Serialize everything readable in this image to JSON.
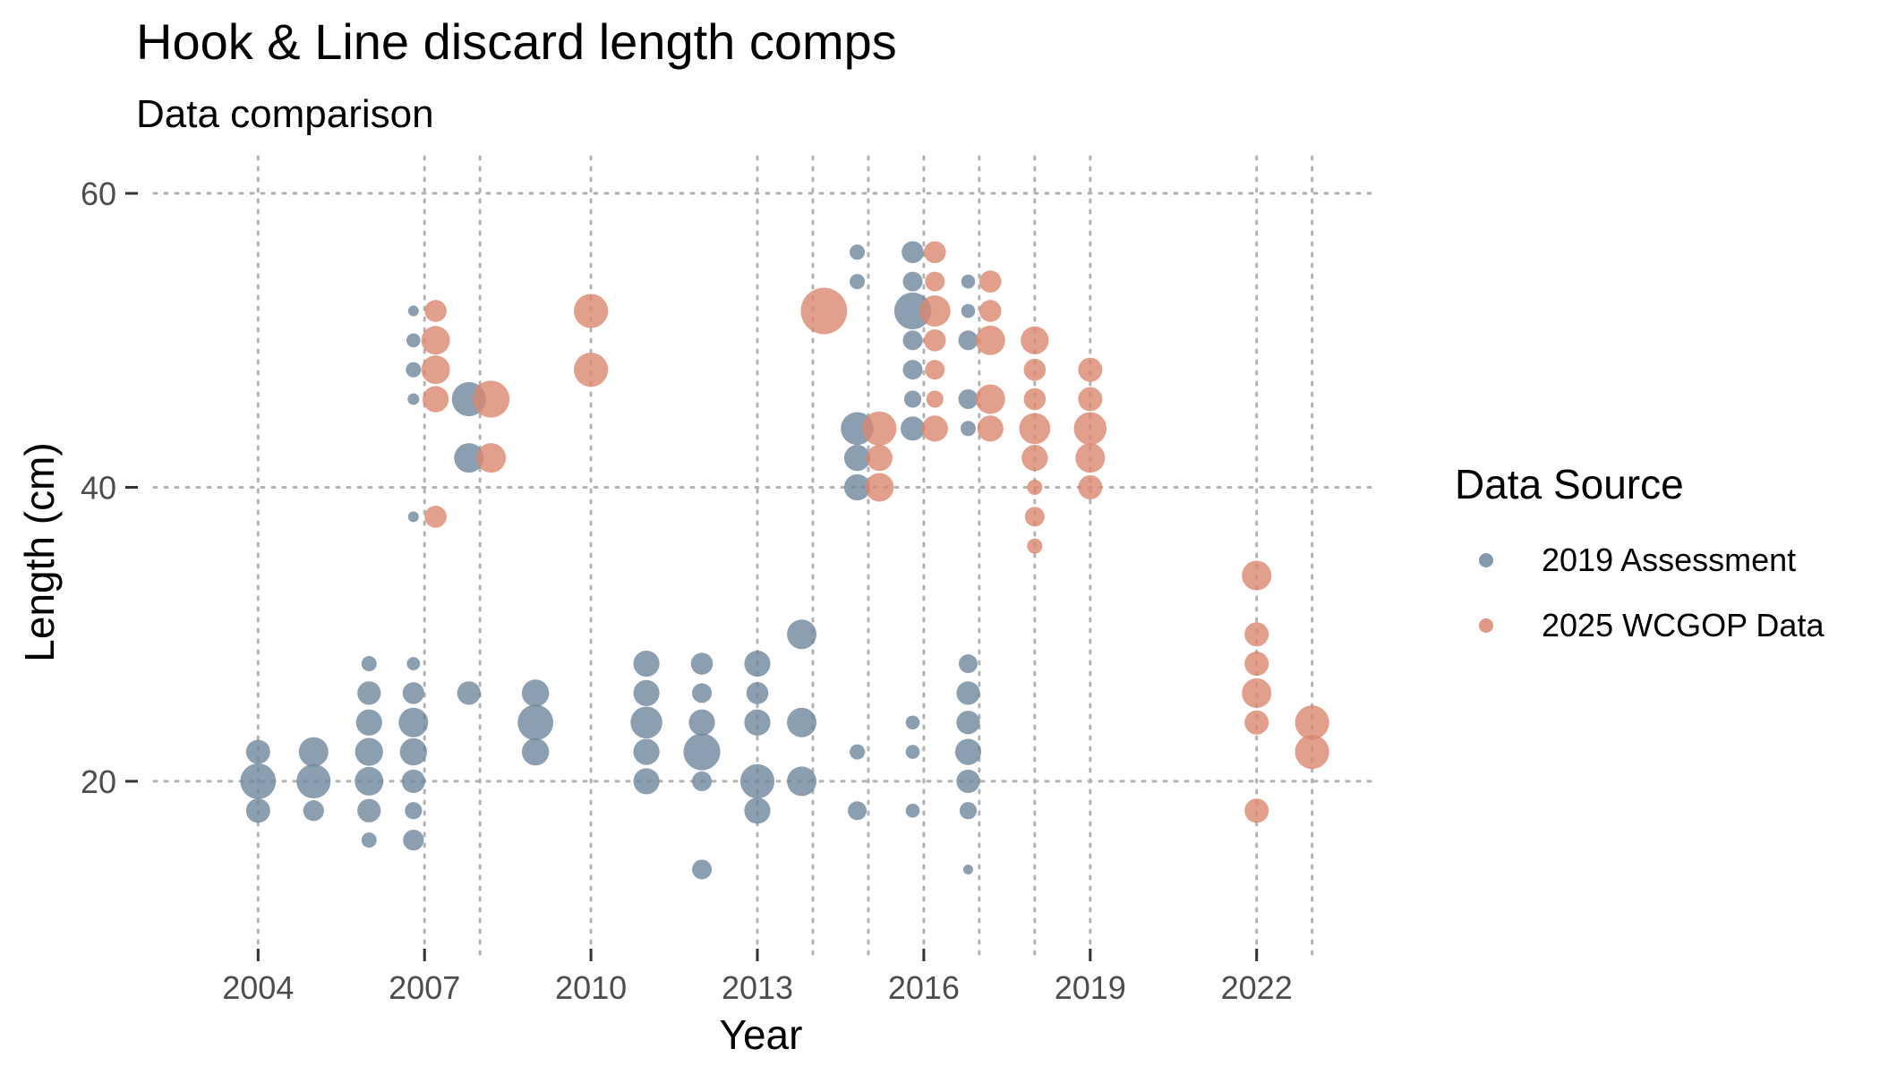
{
  "chart_data": {
    "type": "scatter",
    "title": "Hook & Line discard length comps",
    "subtitle": "Data comparison",
    "xlabel": "Year",
    "ylabel": "Length (cm)",
    "xlim": [
      2001.8,
      2024.2
    ],
    "ylim": [
      8,
      62.5
    ],
    "x_ticks": [
      2004,
      2007,
      2010,
      2013,
      2016,
      2019,
      2022
    ],
    "y_ticks": [
      20,
      40,
      60
    ],
    "x_grid": [
      2004,
      2007,
      2008,
      2010,
      2013,
      2014,
      2015,
      2016,
      2017,
      2018,
      2019,
      2022,
      2023
    ],
    "grid": true,
    "legend": {
      "title": "Data Source",
      "placement": "right"
    },
    "series": [
      {
        "name": "2019 Assessment",
        "color": "#6e879c",
        "points": [
          {
            "x": 2004,
            "y": 22,
            "size": 0.03
          },
          {
            "x": 2004,
            "y": 20,
            "size": 0.065
          },
          {
            "x": 2004,
            "y": 18,
            "size": 0.03
          },
          {
            "x": 2005,
            "y": 22,
            "size": 0.045
          },
          {
            "x": 2005,
            "y": 20,
            "size": 0.06
          },
          {
            "x": 2005,
            "y": 18,
            "size": 0.022
          },
          {
            "x": 2006,
            "y": 28,
            "size": 0.012
          },
          {
            "x": 2006,
            "y": 26,
            "size": 0.028
          },
          {
            "x": 2006,
            "y": 24,
            "size": 0.035
          },
          {
            "x": 2006,
            "y": 22,
            "size": 0.04
          },
          {
            "x": 2006,
            "y": 20,
            "size": 0.042
          },
          {
            "x": 2006,
            "y": 18,
            "size": 0.028
          },
          {
            "x": 2006,
            "y": 16,
            "size": 0.012
          },
          {
            "x": 2006.8,
            "y": 52,
            "size": 0.006
          },
          {
            "x": 2006.8,
            "y": 50,
            "size": 0.01
          },
          {
            "x": 2006.8,
            "y": 48,
            "size": 0.012
          },
          {
            "x": 2006.8,
            "y": 46,
            "size": 0.007
          },
          {
            "x": 2006.8,
            "y": 38,
            "size": 0.006
          },
          {
            "x": 2006.8,
            "y": 28,
            "size": 0.009
          },
          {
            "x": 2006.8,
            "y": 26,
            "size": 0.024
          },
          {
            "x": 2006.8,
            "y": 24,
            "size": 0.045
          },
          {
            "x": 2006.8,
            "y": 22,
            "size": 0.038
          },
          {
            "x": 2006.8,
            "y": 20,
            "size": 0.028
          },
          {
            "x": 2006.8,
            "y": 18,
            "size": 0.015
          },
          {
            "x": 2006.8,
            "y": 16,
            "size": 0.022
          },
          {
            "x": 2007.8,
            "y": 46,
            "size": 0.06
          },
          {
            "x": 2007.8,
            "y": 42,
            "size": 0.045
          },
          {
            "x": 2007.8,
            "y": 26,
            "size": 0.028
          },
          {
            "x": 2009,
            "y": 26,
            "size": 0.038
          },
          {
            "x": 2009,
            "y": 24,
            "size": 0.065
          },
          {
            "x": 2009,
            "y": 22,
            "size": 0.038
          },
          {
            "x": 2011,
            "y": 28,
            "size": 0.035
          },
          {
            "x": 2011,
            "y": 26,
            "size": 0.035
          },
          {
            "x": 2011,
            "y": 24,
            "size": 0.052
          },
          {
            "x": 2011,
            "y": 22,
            "size": 0.035
          },
          {
            "x": 2011,
            "y": 20,
            "size": 0.035
          },
          {
            "x": 2012,
            "y": 28,
            "size": 0.025
          },
          {
            "x": 2012,
            "y": 26,
            "size": 0.02
          },
          {
            "x": 2012,
            "y": 24,
            "size": 0.035
          },
          {
            "x": 2012,
            "y": 22,
            "size": 0.07
          },
          {
            "x": 2012,
            "y": 20,
            "size": 0.02
          },
          {
            "x": 2012,
            "y": 14,
            "size": 0.02
          },
          {
            "x": 2013,
            "y": 28,
            "size": 0.035
          },
          {
            "x": 2013,
            "y": 26,
            "size": 0.025
          },
          {
            "x": 2013,
            "y": 24,
            "size": 0.035
          },
          {
            "x": 2013,
            "y": 20,
            "size": 0.06
          },
          {
            "x": 2013,
            "y": 18,
            "size": 0.035
          },
          {
            "x": 2013.8,
            "y": 30,
            "size": 0.045
          },
          {
            "x": 2013.8,
            "y": 24,
            "size": 0.045
          },
          {
            "x": 2013.8,
            "y": 20,
            "size": 0.045
          },
          {
            "x": 2014.8,
            "y": 56,
            "size": 0.012
          },
          {
            "x": 2014.8,
            "y": 54,
            "size": 0.012
          },
          {
            "x": 2014.8,
            "y": 44,
            "size": 0.055
          },
          {
            "x": 2014.8,
            "y": 42,
            "size": 0.035
          },
          {
            "x": 2014.8,
            "y": 40,
            "size": 0.035
          },
          {
            "x": 2014.8,
            "y": 22,
            "size": 0.012
          },
          {
            "x": 2014.8,
            "y": 18,
            "size": 0.018
          },
          {
            "x": 2015.8,
            "y": 56,
            "size": 0.025
          },
          {
            "x": 2015.8,
            "y": 54,
            "size": 0.02
          },
          {
            "x": 2015.8,
            "y": 52,
            "size": 0.07
          },
          {
            "x": 2015.8,
            "y": 50,
            "size": 0.02
          },
          {
            "x": 2015.8,
            "y": 48,
            "size": 0.02
          },
          {
            "x": 2015.8,
            "y": 46,
            "size": 0.015
          },
          {
            "x": 2015.8,
            "y": 44,
            "size": 0.03
          },
          {
            "x": 2015.8,
            "y": 24,
            "size": 0.01
          },
          {
            "x": 2015.8,
            "y": 22,
            "size": 0.01
          },
          {
            "x": 2015.8,
            "y": 18,
            "size": 0.01
          },
          {
            "x": 2016.8,
            "y": 54,
            "size": 0.01
          },
          {
            "x": 2016.8,
            "y": 52,
            "size": 0.01
          },
          {
            "x": 2016.8,
            "y": 50,
            "size": 0.02
          },
          {
            "x": 2016.8,
            "y": 46,
            "size": 0.02
          },
          {
            "x": 2016.8,
            "y": 44,
            "size": 0.012
          },
          {
            "x": 2016.8,
            "y": 28,
            "size": 0.018
          },
          {
            "x": 2016.8,
            "y": 26,
            "size": 0.028
          },
          {
            "x": 2016.8,
            "y": 24,
            "size": 0.028
          },
          {
            "x": 2016.8,
            "y": 22,
            "size": 0.035
          },
          {
            "x": 2016.8,
            "y": 20,
            "size": 0.028
          },
          {
            "x": 2016.8,
            "y": 18,
            "size": 0.015
          },
          {
            "x": 2016.8,
            "y": 14,
            "size": 0.005
          }
        ]
      },
      {
        "name": "2025 WCGOP Data",
        "color": "#d9876f",
        "points": [
          {
            "x": 2007.2,
            "y": 52,
            "size": 0.025
          },
          {
            "x": 2007.2,
            "y": 50,
            "size": 0.042
          },
          {
            "x": 2007.2,
            "y": 48,
            "size": 0.042
          },
          {
            "x": 2007.2,
            "y": 46,
            "size": 0.035
          },
          {
            "x": 2007.2,
            "y": 38,
            "size": 0.025
          },
          {
            "x": 2008.2,
            "y": 46,
            "size": 0.07
          },
          {
            "x": 2008.2,
            "y": 42,
            "size": 0.045
          },
          {
            "x": 2010,
            "y": 52,
            "size": 0.06
          },
          {
            "x": 2010,
            "y": 48,
            "size": 0.06
          },
          {
            "x": 2014.2,
            "y": 52,
            "size": 0.11
          },
          {
            "x": 2015.2,
            "y": 44,
            "size": 0.06
          },
          {
            "x": 2015.2,
            "y": 42,
            "size": 0.035
          },
          {
            "x": 2015.2,
            "y": 40,
            "size": 0.042
          },
          {
            "x": 2016.2,
            "y": 56,
            "size": 0.025
          },
          {
            "x": 2016.2,
            "y": 54,
            "size": 0.02
          },
          {
            "x": 2016.2,
            "y": 52,
            "size": 0.05
          },
          {
            "x": 2016.2,
            "y": 50,
            "size": 0.025
          },
          {
            "x": 2016.2,
            "y": 48,
            "size": 0.02
          },
          {
            "x": 2016.2,
            "y": 46,
            "size": 0.015
          },
          {
            "x": 2016.2,
            "y": 44,
            "size": 0.035
          },
          {
            "x": 2017.2,
            "y": 54,
            "size": 0.025
          },
          {
            "x": 2017.2,
            "y": 52,
            "size": 0.025
          },
          {
            "x": 2017.2,
            "y": 50,
            "size": 0.045
          },
          {
            "x": 2017.2,
            "y": 46,
            "size": 0.045
          },
          {
            "x": 2017.2,
            "y": 44,
            "size": 0.035
          },
          {
            "x": 2018,
            "y": 50,
            "size": 0.04
          },
          {
            "x": 2018,
            "y": 48,
            "size": 0.025
          },
          {
            "x": 2018,
            "y": 46,
            "size": 0.025
          },
          {
            "x": 2018,
            "y": 44,
            "size": 0.05
          },
          {
            "x": 2018,
            "y": 42,
            "size": 0.035
          },
          {
            "x": 2018,
            "y": 40,
            "size": 0.012
          },
          {
            "x": 2018,
            "y": 38,
            "size": 0.02
          },
          {
            "x": 2018,
            "y": 36,
            "size": 0.012
          },
          {
            "x": 2019,
            "y": 48,
            "size": 0.03
          },
          {
            "x": 2019,
            "y": 46,
            "size": 0.03
          },
          {
            "x": 2019,
            "y": 44,
            "size": 0.055
          },
          {
            "x": 2019,
            "y": 42,
            "size": 0.045
          },
          {
            "x": 2019,
            "y": 40,
            "size": 0.03
          },
          {
            "x": 2022,
            "y": 34,
            "size": 0.045
          },
          {
            "x": 2022,
            "y": 30,
            "size": 0.03
          },
          {
            "x": 2022,
            "y": 28,
            "size": 0.03
          },
          {
            "x": 2022,
            "y": 26,
            "size": 0.045
          },
          {
            "x": 2022,
            "y": 24,
            "size": 0.03
          },
          {
            "x": 2022,
            "y": 18,
            "size": 0.03
          },
          {
            "x": 2023,
            "y": 24,
            "size": 0.06
          },
          {
            "x": 2023,
            "y": 22,
            "size": 0.06
          }
        ]
      }
    ]
  }
}
